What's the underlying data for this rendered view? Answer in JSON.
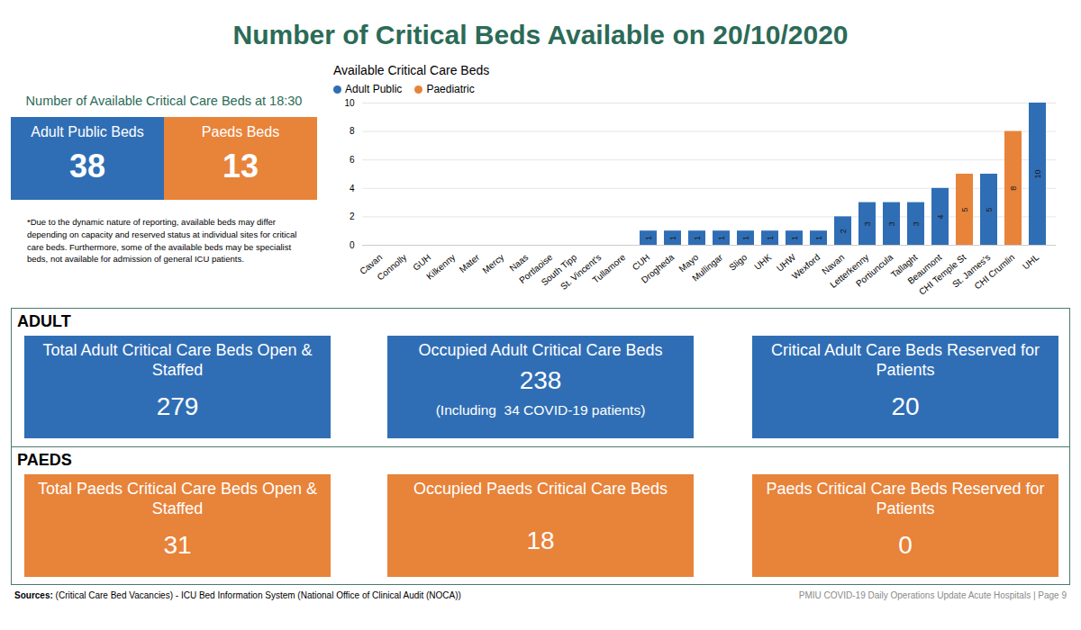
{
  "header": {
    "title": "Number of Critical Beds Available on 20/10/2020"
  },
  "summary": {
    "heading": "Number of Available Critical Care Beds at 18:30",
    "tiles": [
      {
        "label": "Adult Public Beds",
        "value": 38,
        "color": "#2f6eb5"
      },
      {
        "label": "Paeds Beds",
        "value": 13,
        "color": "#e8833a"
      }
    ],
    "note": "*Due to the dynamic nature of reporting, available beds may differ depending on capacity and reserved status at individual sites for critical care beds. Furthermore, some of the available beds may be specialist beds, not available for admission of general ICU patients."
  },
  "chart_data": {
    "type": "bar",
    "title": "Available Critical Care Beds",
    "categories": [
      "Cavan",
      "Connolly",
      "GUH",
      "Kilkenny",
      "Mater",
      "Mercy",
      "Naas",
      "Portlaoise",
      "South Tipp",
      "St. Vincent's",
      "Tullamore",
      "CUH",
      "Drogheda",
      "Mayo",
      "Mullingar",
      "Sligo",
      "UHK",
      "UHW",
      "Wexford",
      "Navan",
      "Letterkenny",
      "Portiuncula",
      "Tallaght",
      "Beaumont",
      "CHI Temple St",
      "St. James's",
      "CHI Crumlin",
      "UHL"
    ],
    "series": [
      {
        "name": "Adult Public",
        "color": "#2f6eb5",
        "values": [
          0,
          0,
          0,
          0,
          0,
          0,
          0,
          0,
          0,
          0,
          0,
          1,
          1,
          1,
          1,
          1,
          1,
          1,
          1,
          2,
          3,
          3,
          3,
          4,
          null,
          5,
          null,
          10
        ]
      },
      {
        "name": "Paediatric",
        "color": "#e8833a",
        "values": [
          null,
          null,
          null,
          null,
          null,
          null,
          null,
          null,
          null,
          null,
          null,
          null,
          null,
          null,
          null,
          null,
          null,
          null,
          null,
          null,
          null,
          null,
          null,
          null,
          5,
          null,
          8,
          null
        ]
      }
    ],
    "ylim": [
      0,
      10
    ],
    "yticks": [
      0,
      2,
      4,
      6,
      8,
      10
    ],
    "grid": true,
    "legend": "top-left",
    "data_labels": true
  },
  "sections": [
    {
      "heading": "ADULT",
      "color": "#2f6eb5",
      "tiles": [
        {
          "label": "Total Adult Critical Care Beds Open & Staffed",
          "value": 279
        },
        {
          "label": "Occupied Adult Critical Care Beds",
          "value": 238,
          "detail": "(Including  34 COVID-19 patients)"
        },
        {
          "label": "Critical Adult Care Beds Reserved for Patients",
          "value": 20
        }
      ]
    },
    {
      "heading": "PAEDS",
      "color": "#e8833a",
      "tiles": [
        {
          "label": "Total Paeds Critical Care Beds Open & Staffed",
          "value": 31
        },
        {
          "label": "Occupied Paeds Critical Care Beds",
          "value": 18
        },
        {
          "label": "Paeds Critical Care Beds Reserved for Patients",
          "value": 0
        }
      ]
    }
  ],
  "footer": {
    "sources_label": "Sources:",
    "sources": "(Critical Care Bed Vacancies) - ICU Bed Information System (National Office of Clinical Audit (NOCA))",
    "page": "PMIU COVID-19 Daily Operations Update Acute Hospitals |  Page 9"
  }
}
